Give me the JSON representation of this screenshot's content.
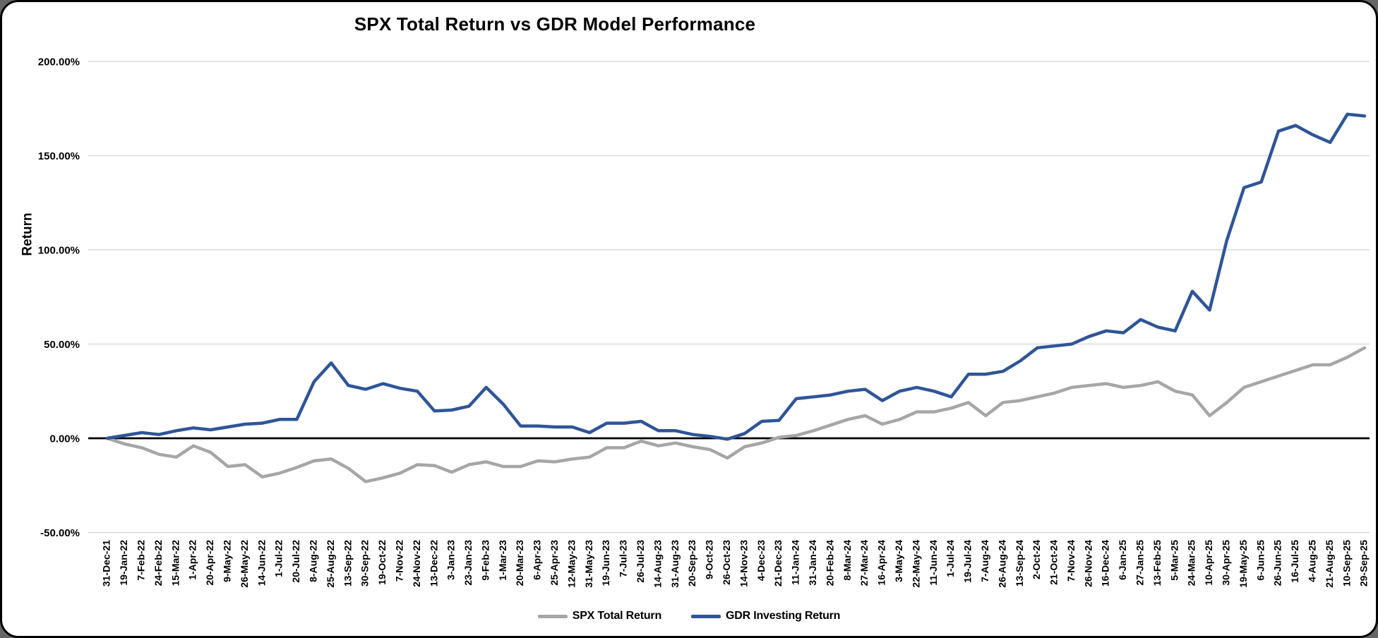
{
  "window": {
    "background": "#FFFFFF",
    "frame_color": "#000000"
  },
  "chart_data": {
    "type": "line",
    "title": "SPX Total Return vs GDR Model Performance",
    "xlabel": "",
    "ylabel": "Return",
    "unit": "%",
    "ylim": [
      -50,
      200
    ],
    "grid": "horizontal",
    "gridline_color": "#D9D9D9",
    "zero_line_color": "#000000",
    "legend_position": "bottom",
    "y_ticks": [
      "200.00%",
      "150.00%",
      "100.00%",
      "50.00%",
      "0.00%",
      "-50.00%"
    ],
    "y_tick_values": [
      200,
      150,
      100,
      50,
      0,
      -50
    ],
    "categories": [
      "31-Dec-21",
      "19-Jan-22",
      "7-Feb-22",
      "24-Feb-22",
      "15-Mar-22",
      "1-Apr-22",
      "20-Apr-22",
      "9-May-22",
      "26-May-22",
      "14-Jun-22",
      "1-Jul-22",
      "20-Jul-22",
      "8-Aug-22",
      "25-Aug-22",
      "13-Sep-22",
      "30-Sep-22",
      "19-Oct-22",
      "7-Nov-22",
      "24-Nov-22",
      "13-Dec-22",
      "3-Jan-23",
      "23-Jan-23",
      "9-Feb-23",
      "1-Mar-23",
      "20-Mar-23",
      "6-Apr-23",
      "25-Apr-23",
      "12-May-23",
      "31-May-23",
      "19-Jun-23",
      "7-Jul-23",
      "26-Jul-23",
      "14-Aug-23",
      "31-Aug-23",
      "20-Sep-23",
      "9-Oct-23",
      "26-Oct-23",
      "14-Nov-23",
      "4-Dec-23",
      "21-Dec-23",
      "11-Jan-24",
      "31-Jan-24",
      "20-Feb-24",
      "8-Mar-24",
      "27-Mar-24",
      "16-Apr-24",
      "3-May-24",
      "22-May-24",
      "11-Jun-24",
      "1-Jul-24",
      "19-Jul-24",
      "7-Aug-24",
      "26-Aug-24",
      "13-Sep-24",
      "2-Oct-24",
      "21-Oct-24",
      "7-Nov-24",
      "26-Nov-24",
      "16-Dec-24",
      "6-Jan-25",
      "27-Jan-25",
      "13-Feb-25",
      "5-Mar-25",
      "24-Mar-25",
      "10-Apr-25",
      "30-Apr-25",
      "19-May-25",
      "6-Jun-25",
      "26-Jun-25",
      "16-Jul-25",
      "4-Aug-25",
      "21-Aug-25",
      "10-Sep-25",
      "29-Sep-25"
    ],
    "series": [
      {
        "name": "SPX Total Return",
        "color": "#A6A6A6",
        "values": [
          0,
          -3,
          -5,
          -8.5,
          -10,
          -4,
          -7.5,
          -15,
          -14,
          -20.5,
          -18.5,
          -15.5,
          -12,
          -11,
          -16,
          -23,
          -21,
          -18.5,
          -14,
          -14.5,
          -18,
          -14,
          -12.5,
          -15,
          -15,
          -12,
          -12.5,
          -11,
          -10,
          -5,
          -5,
          -1.5,
          -4,
          -2.5,
          -4.5,
          -6,
          -10.5,
          -4.5,
          -2.5,
          0.5,
          1.5,
          4,
          7,
          10,
          12,
          7.5,
          10,
          14,
          14,
          16,
          19,
          12,
          19,
          20,
          22,
          24,
          27,
          28,
          29,
          27,
          28,
          30,
          25,
          23,
          12,
          19,
          27,
          30,
          33,
          36,
          39,
          39,
          43,
          48
        ]
      },
      {
        "name": "GDR Investing Return",
        "color": "#2F5597",
        "values": [
          0,
          1.5,
          3,
          2,
          4,
          5.5,
          4.5,
          6,
          7.5,
          8,
          10,
          10,
          30,
          40,
          28,
          26,
          29,
          26.5,
          25,
          14.5,
          15,
          17,
          27,
          18,
          6.5,
          6.5,
          6,
          6,
          3,
          8,
          8,
          9,
          4,
          4,
          2,
          1,
          -0.5,
          2.5,
          9,
          9.5,
          21,
          22,
          23,
          25,
          26,
          20,
          25,
          27,
          25,
          22,
          34,
          34,
          35.5,
          41,
          48,
          49,
          50,
          54,
          57,
          56,
          63,
          59,
          57,
          78,
          68,
          105,
          133,
          136,
          163,
          166,
          161,
          157,
          172,
          171
        ]
      }
    ]
  }
}
